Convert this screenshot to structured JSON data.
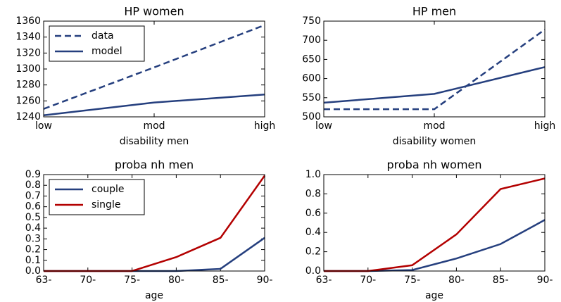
{
  "chart_data": [
    {
      "type": "line",
      "title": "HP women",
      "x_label": "disability men",
      "categories": [
        "low",
        "mod",
        "high"
      ],
      "series": [
        {
          "name": "data",
          "color": "#253f7e",
          "linestyle": "dashed",
          "values": [
            1250,
            1302,
            1355
          ]
        },
        {
          "name": "model",
          "color": "#253f7e",
          "linestyle": "solid",
          "values": [
            1242,
            1258,
            1268
          ]
        }
      ],
      "ylim": [
        1240,
        1360
      ],
      "yticks": [
        1240,
        1260,
        1280,
        1300,
        1320,
        1340,
        1360
      ],
      "legend": "upper left"
    },
    {
      "type": "line",
      "title": "HP men",
      "x_label": "disability women",
      "categories": [
        "low",
        "mod",
        "high"
      ],
      "series": [
        {
          "name": "data",
          "color": "#253f7e",
          "linestyle": "dashed",
          "values": [
            520,
            520,
            728
          ]
        },
        {
          "name": "model",
          "color": "#253f7e",
          "linestyle": "solid",
          "values": [
            537,
            560,
            630
          ]
        }
      ],
      "ylim": [
        500,
        750
      ],
      "yticks": [
        500,
        550,
        600,
        650,
        700,
        750
      ]
    },
    {
      "type": "line",
      "title": "proba nh men",
      "x_label": "age",
      "categories": [
        "63-",
        "70-",
        "75-",
        "80-",
        "85-",
        "90-"
      ],
      "series": [
        {
          "name": "couple",
          "color": "#253f7e",
          "linestyle": "solid",
          "values": [
            0,
            0,
            0,
            0,
            0.02,
            0.31
          ]
        },
        {
          "name": "single",
          "color": "#b30000",
          "linestyle": "solid",
          "values": [
            0,
            0,
            0,
            0.13,
            0.31,
            0.89
          ]
        }
      ],
      "ylim": [
        0,
        0.9
      ],
      "yticks": [
        {
          "value": 0,
          "label": "0.0"
        },
        0.1,
        0.2,
        0.3,
        0.4,
        0.5,
        0.6,
        0.7,
        0.8,
        0.9
      ],
      "legend": "upper left"
    },
    {
      "type": "line",
      "title": "proba nh women",
      "x_label": "age",
      "categories": [
        "63-",
        "70-",
        "75-",
        "80-",
        "85-",
        "90-"
      ],
      "series": [
        {
          "name": "couple",
          "color": "#253f7e",
          "linestyle": "solid",
          "values": [
            0,
            0,
            0.01,
            0.13,
            0.28,
            0.53
          ]
        },
        {
          "name": "single",
          "color": "#b30000",
          "linestyle": "solid",
          "values": [
            0,
            0,
            0.06,
            0.38,
            0.85,
            0.96
          ]
        }
      ],
      "ylim": [
        0,
        1
      ],
      "yticks": [
        {
          "value": 0,
          "label": "0.0"
        },
        0.2,
        0.4,
        0.6,
        0.8,
        {
          "value": 1,
          "label": "1.0"
        }
      ]
    }
  ]
}
